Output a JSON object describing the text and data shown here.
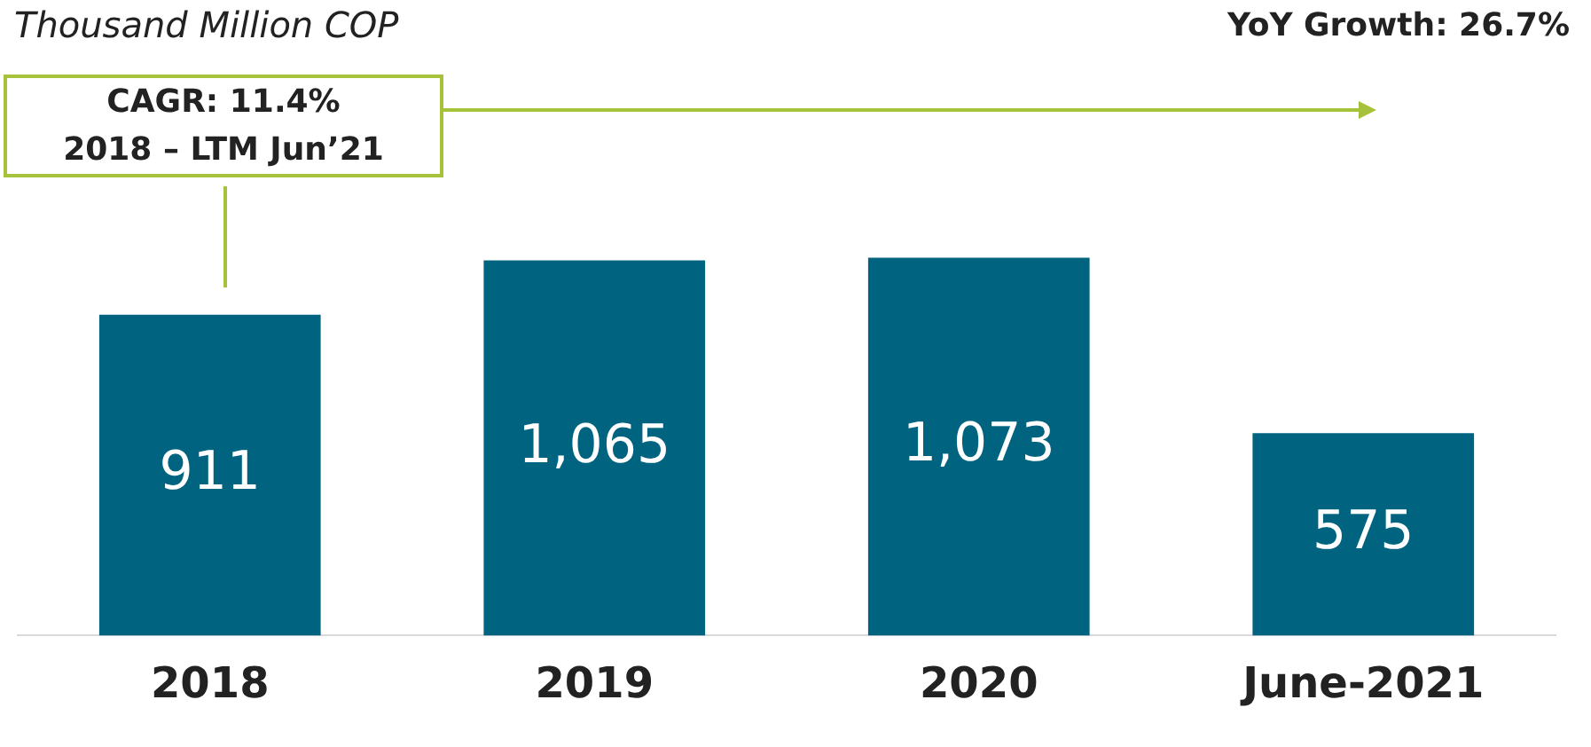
{
  "chart_data": {
    "type": "bar",
    "title": "Thousand Million COP",
    "categories": [
      "2018",
      "2019",
      "2020",
      "June-2021"
    ],
    "values": [
      911,
      1065,
      1073,
      575
    ],
    "color": "#00637f",
    "data_labels": true,
    "value_labels": [
      "911",
      "1,065",
      "1,073",
      "575"
    ],
    "grid": false,
    "legend": false,
    "annotations": [
      "CAGR: 11.4%\n2018 – LTM Jun’21",
      "YoY Growth: 26.7%"
    ]
  }
}
